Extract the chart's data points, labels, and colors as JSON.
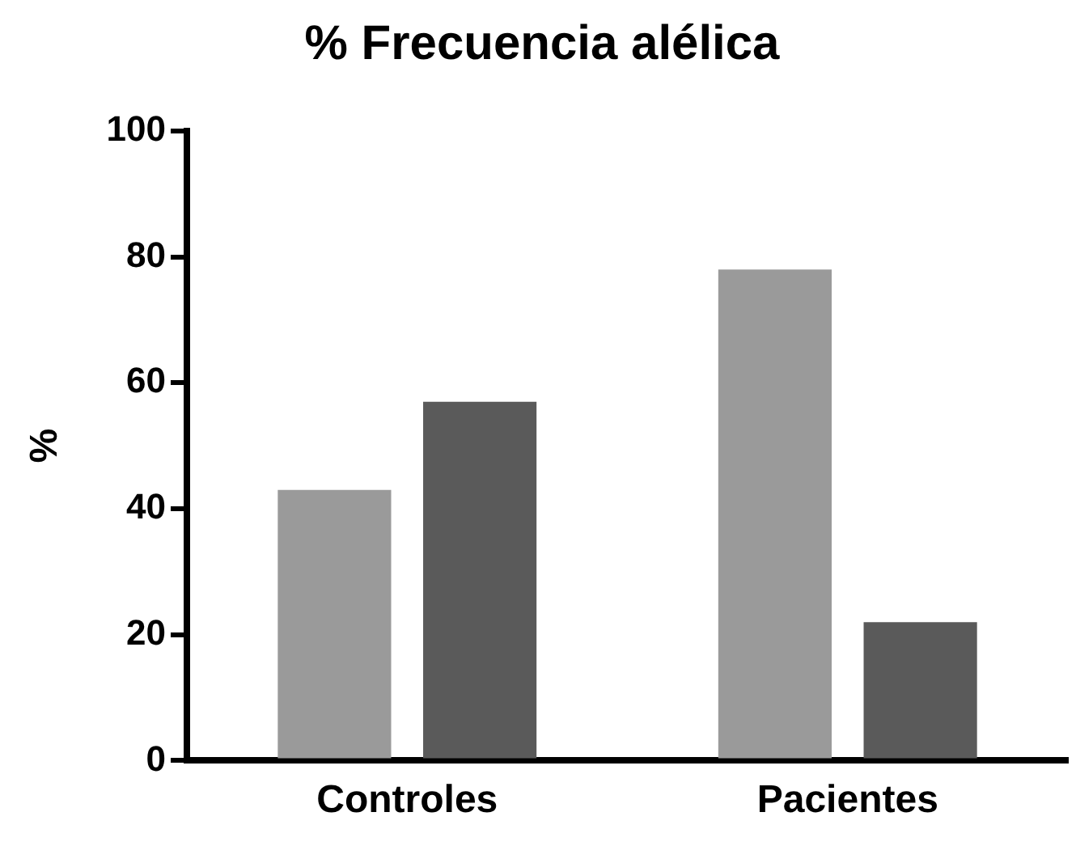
{
  "chart_data": {
    "type": "bar",
    "title": "% Frecuencia alélica",
    "ylabel": "%",
    "categories": [
      "Controles",
      "Pacientes"
    ],
    "series": [
      {
        "color": "#9a9a9a",
        "values": [
          43,
          78
        ]
      },
      {
        "color": "#5a5a5a",
        "values": [
          57,
          22
        ]
      }
    ],
    "ylim": [
      0,
      100
    ],
    "yticks": [
      0,
      20,
      40,
      60,
      80,
      100
    ],
    "grid": false,
    "legend": false
  }
}
